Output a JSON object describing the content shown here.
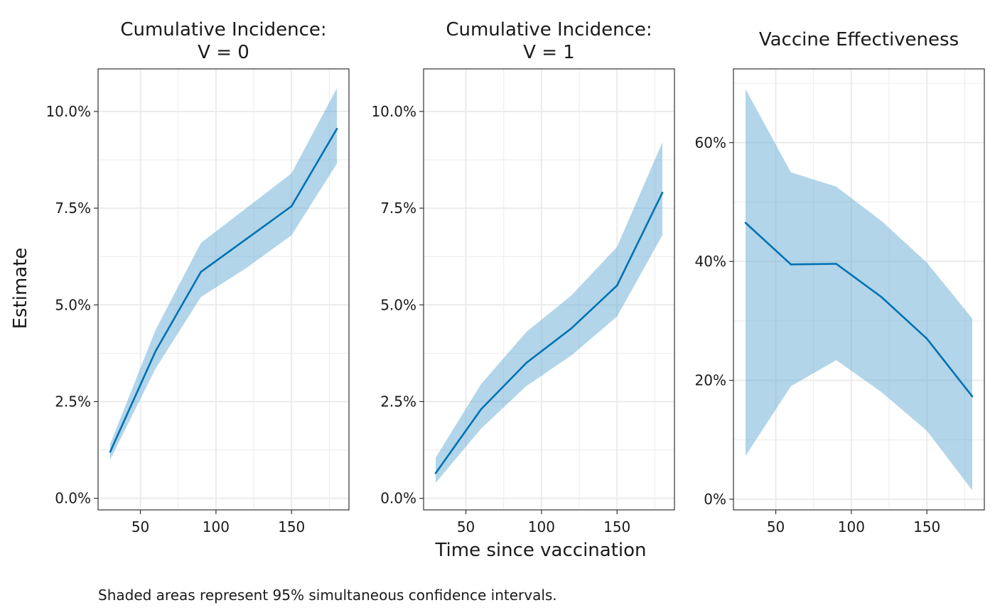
{
  "ylabel": "Estimate",
  "xlabel": "Time since vaccination",
  "caption": "Shaded areas represent 95% simultaneous confidence intervals.",
  "colors": {
    "line": "#0072B2",
    "band": "#6BAED6",
    "grid": "#EBEBEB",
    "border": "#333333"
  },
  "chart_data": [
    {
      "type": "line",
      "title_lines": [
        "Cumulative Incidence:",
        "V = 0"
      ],
      "x": [
        30,
        60,
        90,
        120,
        150,
        180
      ],
      "estimate": [
        1.2,
        3.8,
        5.85,
        6.7,
        7.55,
        9.55
      ],
      "lower": [
        1.0,
        3.35,
        5.2,
        5.95,
        6.8,
        8.65
      ],
      "upper": [
        1.4,
        4.35,
        6.6,
        7.5,
        8.4,
        10.6
      ],
      "xlim": [
        22,
        188
      ],
      "ylim": [
        -0.3,
        11.1
      ],
      "xticks": [
        50,
        100,
        150
      ],
      "xtick_labels": [
        "50",
        "100",
        "150"
      ],
      "xminor": [
        75,
        125,
        175
      ],
      "yticks": [
        0,
        2.5,
        5,
        7.5,
        10
      ],
      "ytick_labels": [
        "0.0%",
        "2.5%",
        "5.0%",
        "7.5%",
        "10.0%"
      ],
      "yminor": [
        1.25,
        3.75,
        6.25,
        8.75
      ],
      "grid": true
    },
    {
      "type": "line",
      "title_lines": [
        "Cumulative Incidence:",
        "V = 1"
      ],
      "x": [
        30,
        60,
        90,
        120,
        150,
        180
      ],
      "estimate": [
        0.65,
        2.3,
        3.5,
        4.4,
        5.5,
        7.9
      ],
      "lower": [
        0.4,
        1.8,
        2.9,
        3.7,
        4.7,
        6.8
      ],
      "upper": [
        1.05,
        2.95,
        4.3,
        5.25,
        6.5,
        9.2
      ],
      "xlim": [
        22,
        188
      ],
      "ylim": [
        -0.3,
        11.1
      ],
      "xticks": [
        50,
        100,
        150
      ],
      "xtick_labels": [
        "50",
        "100",
        "150"
      ],
      "xminor": [
        75,
        125,
        175
      ],
      "yticks": [
        0,
        2.5,
        5,
        7.5,
        10
      ],
      "ytick_labels": [
        "0.0%",
        "2.5%",
        "5.0%",
        "7.5%",
        "10.0%"
      ],
      "yminor": [
        1.25,
        3.75,
        6.25,
        8.75
      ],
      "grid": true
    },
    {
      "type": "line",
      "title_lines": [
        "Vaccine Effectiveness"
      ],
      "x": [
        30,
        60,
        90,
        120,
        150,
        180
      ],
      "estimate": [
        46.5,
        39.5,
        39.6,
        34.0,
        27.0,
        17.3
      ],
      "lower": [
        7.3,
        19.0,
        23.4,
        18.0,
        11.5,
        1.5
      ],
      "upper": [
        69.0,
        55.0,
        52.6,
        46.8,
        39.8,
        30.4
      ],
      "xlim": [
        22,
        188
      ],
      "ylim": [
        -1.8,
        72.4
      ],
      "xticks": [
        50,
        100,
        150
      ],
      "xtick_labels": [
        "50",
        "100",
        "150"
      ],
      "xminor": [
        75,
        125,
        175
      ],
      "yticks": [
        0,
        20,
        40,
        60
      ],
      "ytick_labels": [
        "0%",
        "20%",
        "40%",
        "60%"
      ],
      "yminor": [
        10,
        30,
        50,
        70
      ],
      "grid": true
    }
  ]
}
